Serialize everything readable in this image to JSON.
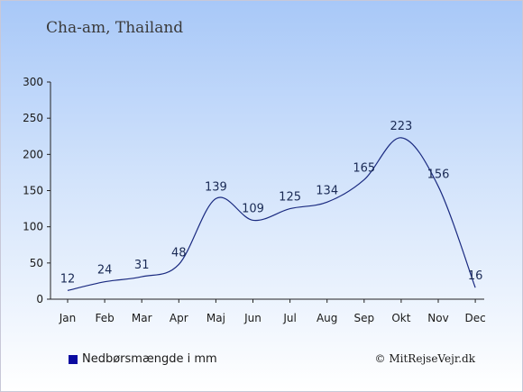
{
  "chart_data": {
    "type": "line",
    "title": "Cha-am, Thailand",
    "categories": [
      "Jan",
      "Feb",
      "Mar",
      "Apr",
      "Maj",
      "Jun",
      "Jul",
      "Aug",
      "Sep",
      "Okt",
      "Nov",
      "Dec"
    ],
    "series": [
      {
        "name": "Nedbørsmængde i mm",
        "values": [
          12,
          24,
          31,
          48,
          139,
          109,
          125,
          134,
          165,
          223,
          156,
          16
        ]
      }
    ],
    "data_labels": [
      "12",
      "24",
      "31",
      "48",
      "139",
      "109",
      "125",
      "134",
      "165",
      "223",
      "156",
      "16"
    ],
    "ylim": [
      0,
      300
    ],
    "yticks": [
      0,
      50,
      100,
      150,
      200,
      250,
      300
    ],
    "ytick_labels": [
      "0",
      "50",
      "100",
      "150",
      "200",
      "250",
      "300"
    ],
    "xlabel": "",
    "ylabel": "",
    "grid": false,
    "legend_position": "bottom-left",
    "colors": {
      "line": "#1a2a80",
      "legend_swatch": "#0a0aa0",
      "background_top": "#a8c8f8",
      "background_bottom": "#ffffff"
    }
  },
  "legend": {
    "label": "Nedbørsmængde i mm"
  },
  "credit": "© MitRejseVejr.dk"
}
